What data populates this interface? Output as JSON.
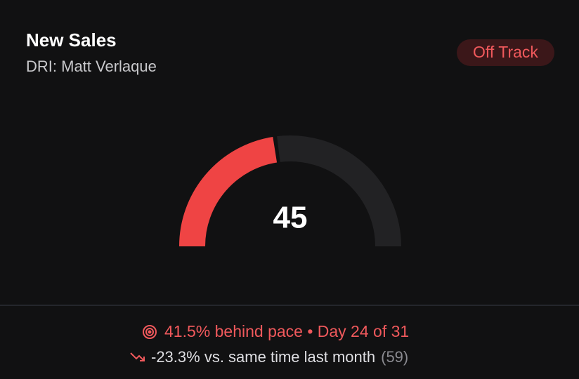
{
  "header": {
    "title": "New Sales",
    "subtitle": "DRI: Matt Verlaque",
    "status": "Off Track"
  },
  "chart_data": {
    "type": "gauge",
    "value": 45,
    "ylim": [
      0,
      100
    ],
    "color": "#ef4444",
    "track_color": "#222224"
  },
  "footer": {
    "pace": "41.5% behind pace • Day 24 of 31",
    "comparison": "-23.3% vs. same time last month",
    "previous": "(59)"
  }
}
